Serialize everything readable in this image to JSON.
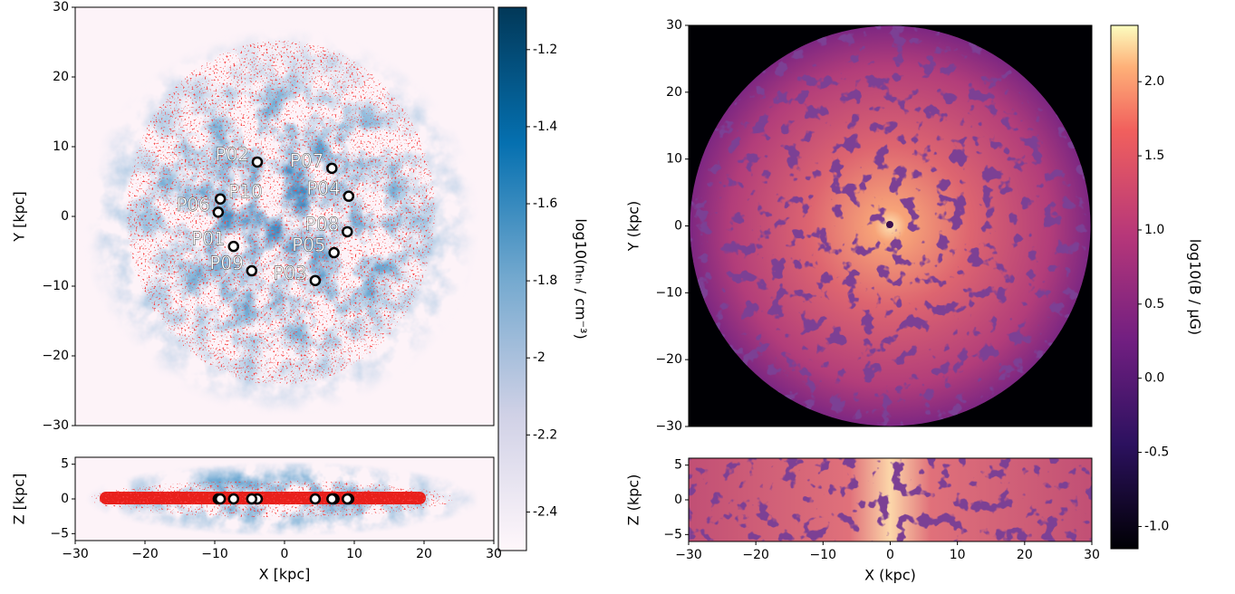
{
  "chart_data": [
    {
      "type": "scatter",
      "ylabel": "Y [kpc]",
      "xlim": [
        -30,
        30
      ],
      "ylim": [
        -30,
        30
      ],
      "yticks": [
        {
          "value": -30,
          "label": "−30"
        },
        {
          "value": -20,
          "label": "−20"
        },
        {
          "value": -10,
          "label": "−10"
        },
        0,
        10,
        20,
        30
      ],
      "point_labels": [
        "P01",
        "P02",
        "P03",
        "P04",
        "P05",
        "P06",
        "P07",
        "P08",
        "P09",
        "P10"
      ],
      "x": [
        -7.3,
        -3.9,
        4.4,
        9.2,
        7.1,
        -9.5,
        6.8,
        9.0,
        -4.7,
        -9.2
      ],
      "y": [
        -4.3,
        7.8,
        -9.2,
        2.9,
        -5.2,
        0.6,
        6.9,
        -2.2,
        -7.8,
        2.5
      ],
      "color": "#ffffff",
      "edgecolor": "#000000",
      "colorbar": {
        "label": "log10(nₜₕ / cm⁻³)",
        "lim": [
          -2.5,
          -1.09
        ],
        "ticks": [
          -2.4,
          -2.2,
          -2.0,
          -1.8,
          -1.6,
          -1.4,
          -1.2
        ]
      }
    },
    {
      "type": "scatter",
      "xlabel": "X [kpc]",
      "ylabel": "Z [kpc]",
      "xlim": [
        -30,
        30
      ],
      "ylim": [
        -6,
        6
      ],
      "xticks": [
        {
          "value": -30,
          "label": "−30"
        },
        {
          "value": -20,
          "label": "−20"
        },
        {
          "value": -10,
          "label": "−10"
        },
        0,
        10,
        20,
        30
      ],
      "yticks": [
        {
          "value": -5,
          "label": "−5"
        },
        0,
        5
      ],
      "x": [
        -7.3,
        -3.9,
        4.4,
        9.2,
        7.1,
        -9.5,
        6.8,
        9.0,
        -4.7,
        -9.2
      ],
      "y": [
        0,
        0,
        0,
        0,
        0,
        0,
        0,
        0,
        0,
        0
      ],
      "color": "#ffffff",
      "edgecolor": "#000000"
    },
    {
      "type": "image",
      "ylabel": "Y (kpc)",
      "xlim": [
        -30,
        30
      ],
      "ylim": [
        -30,
        30
      ],
      "yticks": [
        {
          "value": -30,
          "label": "−30"
        },
        {
          "value": -20,
          "label": "−20"
        },
        {
          "value": -10,
          "label": "−10"
        },
        0,
        10,
        20,
        30
      ],
      "colorbar": {
        "label": "log10(B / μG)",
        "lim": [
          -1.15,
          2.38
        ],
        "ticks": [
          {
            "value": -1.0,
            "label": "-1.0"
          },
          -0.5,
          {
            "value": 0,
            "label": "0.0"
          },
          0.5,
          {
            "value": 1,
            "label": "1.0"
          },
          1.5,
          {
            "value": 2,
            "label": "2.0"
          }
        ]
      }
    },
    {
      "type": "image",
      "xlabel": "X (kpc)",
      "ylabel": "Z (kpc)",
      "xlim": [
        -30,
        30
      ],
      "ylim": [
        -6,
        6
      ],
      "xticks": [
        {
          "value": -30,
          "label": "−30"
        },
        {
          "value": -20,
          "label": "−20"
        },
        {
          "value": -10,
          "label": "−10"
        },
        0,
        10,
        20,
        30
      ],
      "yticks": [
        {
          "value": -5,
          "label": "−5"
        },
        0,
        5
      ]
    }
  ]
}
